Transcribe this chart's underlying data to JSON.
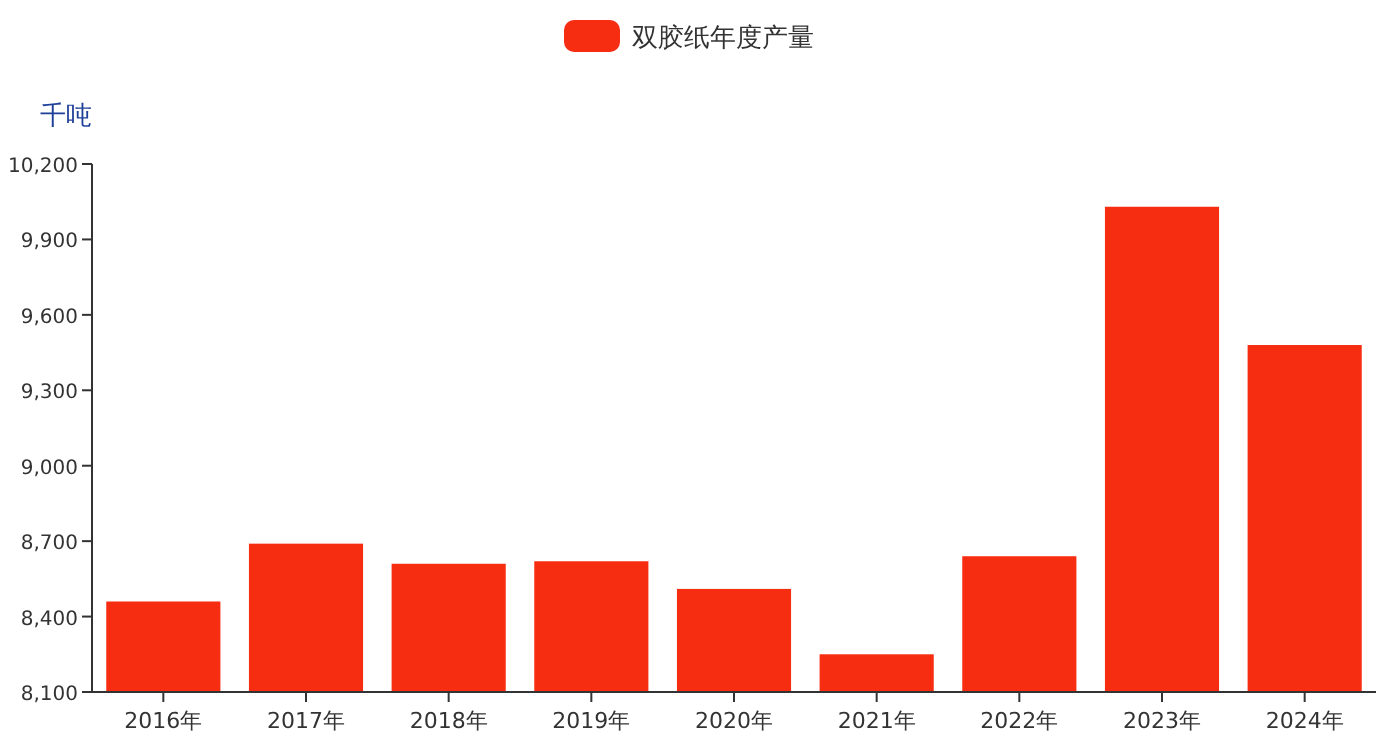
{
  "chart_data": {
    "type": "bar",
    "ylabel": "千吨",
    "categories": [
      "2016年",
      "2017年",
      "2018年",
      "2019年",
      "2020年",
      "2021年",
      "2022年",
      "2023年",
      "2024年"
    ],
    "series": [
      {
        "name": "双胶纸年度产量",
        "color": "#f72d12",
        "values": [
          8460,
          8690,
          8610,
          8620,
          8510,
          8250,
          8640,
          10030,
          9480
        ]
      }
    ],
    "ylim": [
      8100,
      10200
    ],
    "yticks": [
      {
        "value": 8100,
        "label": "8,100"
      },
      {
        "value": 8400,
        "label": "8,400"
      },
      {
        "value": 8700,
        "label": "8,700"
      },
      {
        "value": 9000,
        "label": "9,000"
      },
      {
        "value": 9300,
        "label": "9,300"
      },
      {
        "value": 9600,
        "label": "9,600"
      },
      {
        "value": 9900,
        "label": "9,900"
      },
      {
        "value": 10200,
        "label": "10,200"
      }
    ],
    "grid": false,
    "legend": "top"
  }
}
